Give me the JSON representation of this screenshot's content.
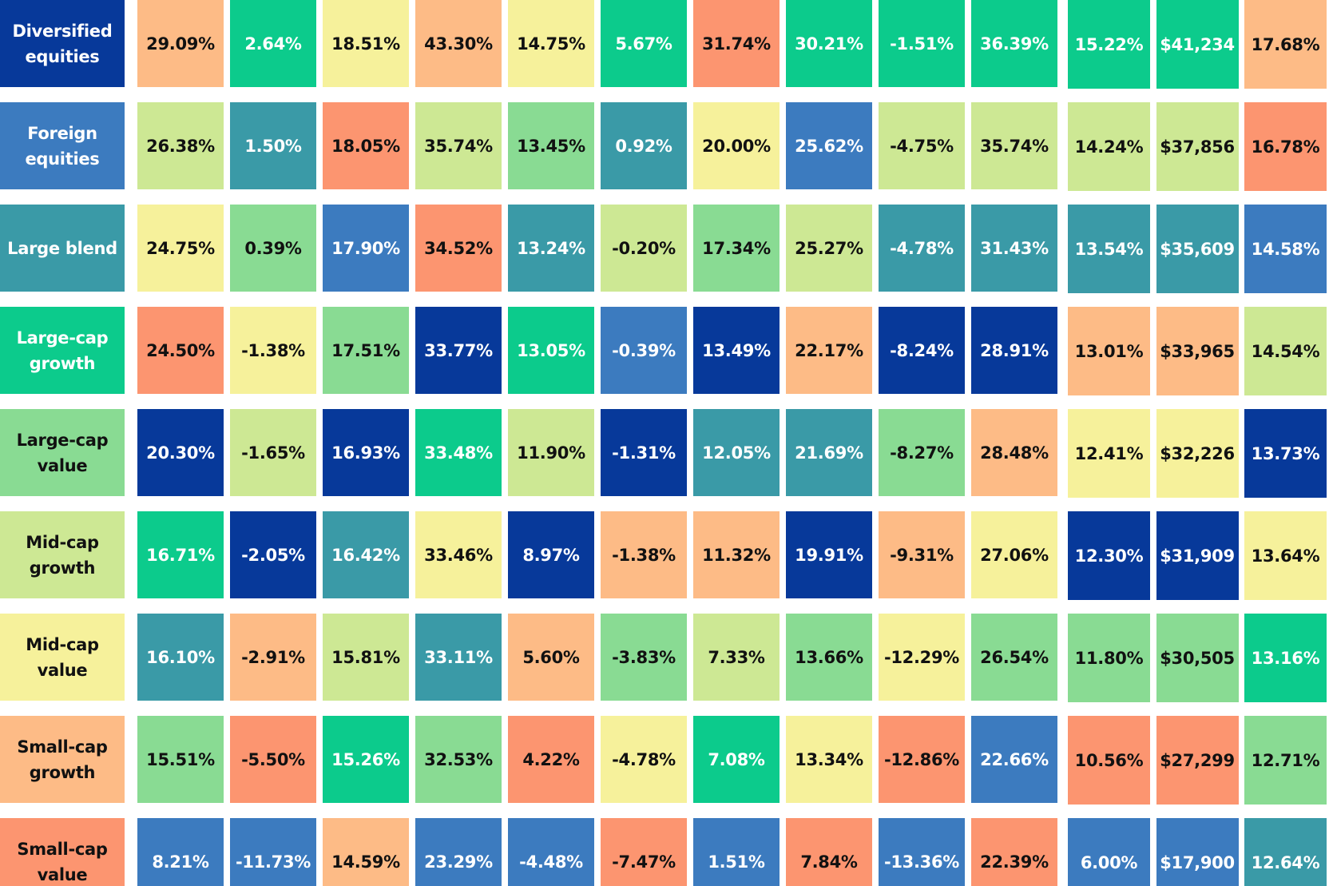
{
  "rows": [
    {
      "label": "Diversified equities",
      "label_color": "#07399a",
      "cells": [
        "29.09%",
        "2.64%",
        "18.51%",
        "43.30%",
        "14.75%",
        "5.67%",
        "31.74%",
        "30.21%",
        "-1.51%",
        "36.39%",
        "15.22%",
        "$41,234",
        "17.68%"
      ],
      "colors": [
        "#fdbb86",
        "#0ccb8c",
        "#f6f19b",
        "#fdbb86",
        "#f6f19b",
        "#0ccb8c",
        "#fc9570",
        "#0ccb8c",
        "#0ccb8c",
        "#0ccb8c",
        "#0ccb8c",
        "#0ccb8c",
        "#fdbb86"
      ]
    },
    {
      "label": "Foreign equities",
      "label_color": "#3c7bbf",
      "cells": [
        "26.38%",
        "1.50%",
        "18.05%",
        "35.74%",
        "13.45%",
        "0.92%",
        "20.00%",
        "25.62%",
        "-4.75%",
        "35.74%",
        "14.24%",
        "$37,856",
        "16.78%"
      ],
      "colors": [
        "#cde894",
        "#3a9aa7",
        "#fc9570",
        "#cde894",
        "#89db93",
        "#3a9aa7",
        "#f6f19b",
        "#3c7bbf",
        "#cde894",
        "#cde894",
        "#cde894",
        "#cde894",
        "#fc9570"
      ]
    },
    {
      "label": "Large blend",
      "label_color": "#3a9aa7",
      "cells": [
        "24.75%",
        "0.39%",
        "17.90%",
        "34.52%",
        "13.24%",
        "-0.20%",
        "17.34%",
        "25.27%",
        "-4.78%",
        "31.43%",
        "13.54%",
        "$35,609",
        "14.58%"
      ],
      "colors": [
        "#f6f19b",
        "#89db93",
        "#3c7bbf",
        "#fc9570",
        "#3a9aa7",
        "#cde894",
        "#89db93",
        "#cde894",
        "#3a9aa7",
        "#3a9aa7",
        "#3a9aa7",
        "#3a9aa7",
        "#3c7bbf"
      ]
    },
    {
      "label": "Large-cap growth",
      "label_color": "#0ccb8c",
      "cells": [
        "24.50%",
        "-1.38%",
        "17.51%",
        "33.77%",
        "13.05%",
        "-0.39%",
        "13.49%",
        "22.17%",
        "-8.24%",
        "28.91%",
        "13.01%",
        "$33,965",
        "14.54%"
      ],
      "colors": [
        "#fc9570",
        "#f6f19b",
        "#89db93",
        "#07399a",
        "#0ccb8c",
        "#3c7bbf",
        "#07399a",
        "#fdbb86",
        "#07399a",
        "#07399a",
        "#fdbb86",
        "#fdbb86",
        "#cde894"
      ]
    },
    {
      "label": "Large-cap value",
      "label_color": "#89db93",
      "cells": [
        "20.30%",
        "-1.65%",
        "16.93%",
        "33.48%",
        "11.90%",
        "-1.31%",
        "12.05%",
        "21.69%",
        "-8.27%",
        "28.48%",
        "12.41%",
        "$32,226",
        "13.73%"
      ],
      "colors": [
        "#07399a",
        "#cde894",
        "#07399a",
        "#0ccb8c",
        "#cde894",
        "#07399a",
        "#3a9aa7",
        "#3a9aa7",
        "#89db93",
        "#fdbb86",
        "#f6f19b",
        "#f6f19b",
        "#07399a"
      ]
    },
    {
      "label": "Mid-cap growth",
      "label_color": "#cde894",
      "cells": [
        "16.71%",
        "-2.05%",
        "16.42%",
        "33.46%",
        "8.97%",
        "-1.38%",
        "11.32%",
        "19.91%",
        "-9.31%",
        "27.06%",
        "12.30%",
        "$31,909",
        "13.64%"
      ],
      "colors": [
        "#0ccb8c",
        "#07399a",
        "#3a9aa7",
        "#f6f19b",
        "#07399a",
        "#fdbb86",
        "#fdbb86",
        "#07399a",
        "#fdbb86",
        "#f6f19b",
        "#07399a",
        "#07399a",
        "#f6f19b"
      ]
    },
    {
      "label": "Mid-cap value",
      "label_color": "#f6f19b",
      "cells": [
        "16.10%",
        "-2.91%",
        "15.81%",
        "33.11%",
        "5.60%",
        "-3.83%",
        "7.33%",
        "13.66%",
        "-12.29%",
        "26.54%",
        "11.80%",
        "$30,505",
        "13.16%"
      ],
      "colors": [
        "#3a9aa7",
        "#fdbb86",
        "#cde894",
        "#3a9aa7",
        "#fdbb86",
        "#89db93",
        "#cde894",
        "#89db93",
        "#f6f19b",
        "#89db93",
        "#89db93",
        "#89db93",
        "#0ccb8c"
      ]
    },
    {
      "label": "Small-cap growth",
      "label_color": "#fdbb86",
      "cells": [
        "15.51%",
        "-5.50%",
        "15.26%",
        "32.53%",
        "4.22%",
        "-4.78%",
        "7.08%",
        "13.34%",
        "-12.86%",
        "22.66%",
        "10.56%",
        "$27,299",
        "12.71%"
      ],
      "colors": [
        "#89db93",
        "#fc9570",
        "#0ccb8c",
        "#89db93",
        "#fc9570",
        "#f6f19b",
        "#0ccb8c",
        "#f6f19b",
        "#fc9570",
        "#3c7bbf",
        "#fc9570",
        "#fc9570",
        "#89db93"
      ]
    },
    {
      "label": "Small-cap value",
      "label_color": "#fc9570",
      "cells": [
        "8.21%",
        "-11.73%",
        "14.59%",
        "23.29%",
        "-4.48%",
        "-7.47%",
        "1.51%",
        "7.84%",
        "-13.36%",
        "22.39%",
        "6.00%",
        "$17,900",
        "12.64%"
      ],
      "colors": [
        "#3c7bbf",
        "#3c7bbf",
        "#fdbb86",
        "#3c7bbf",
        "#3c7bbf",
        "#fc9570",
        "#3c7bbf",
        "#fc9570",
        "#3c7bbf",
        "#fc9570",
        "#3c7bbf",
        "#3c7bbf",
        "#3a9aa7"
      ]
    }
  ]
}
